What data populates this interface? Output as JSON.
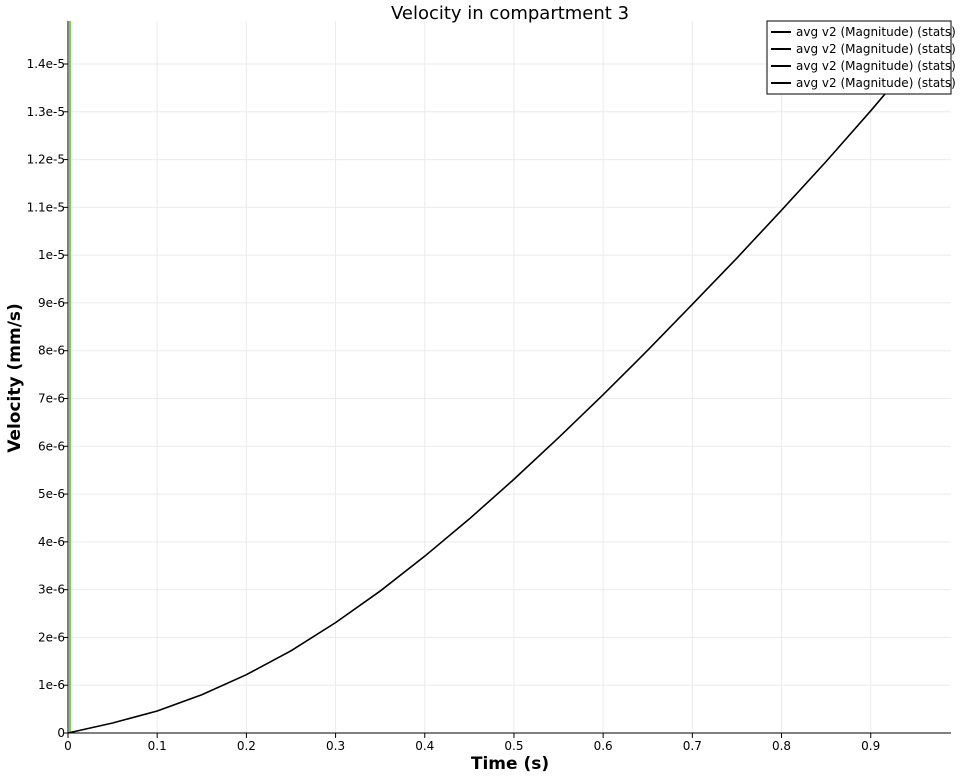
{
  "chart_data": {
    "type": "line",
    "title": "Velocity in compartment 3",
    "xlabel": "Time (s)",
    "ylabel": "Velocity (mm/s)",
    "xlim": [
      0,
      0.99
    ],
    "ylim": [
      0,
      1.49e-05
    ],
    "x_ticks": [
      0,
      0.1,
      0.2,
      0.3,
      0.4,
      0.5,
      0.6,
      0.7,
      0.8,
      0.9
    ],
    "x_tick_labels": [
      "0",
      "0.1",
      "0.2",
      "0.3",
      "0.4",
      "0.5",
      "0.6",
      "0.7",
      "0.8",
      "0.9"
    ],
    "y_ticks": [
      0,
      1e-06,
      2e-06,
      3e-06,
      4e-06,
      5e-06,
      6e-06,
      7e-06,
      8e-06,
      9e-06,
      1e-05,
      1.1e-05,
      1.2e-05,
      1.3e-05,
      1.4e-05
    ],
    "y_tick_labels": [
      "0",
      "1e-6",
      "2e-6",
      "3e-6",
      "4e-6",
      "5e-6",
      "6e-6",
      "7e-6",
      "8e-6",
      "9e-6",
      "1e-5",
      "1.1e-5",
      "1.2e-5",
      "1.3e-5",
      "1.4e-5"
    ],
    "grid": true,
    "legend_position": "top-right",
    "series": [
      {
        "name": "avg v2 (Magnitude) (stats)",
        "color": "#000000",
        "x": [
          0,
          0.05,
          0.1,
          0.15,
          0.2,
          0.25,
          0.3,
          0.35,
          0.4,
          0.45,
          0.5,
          0.55,
          0.6,
          0.65,
          0.7,
          0.75,
          0.8,
          0.85,
          0.9,
          0.94
        ],
        "y": [
          0,
          2.1e-07,
          4.6e-07,
          8e-07,
          1.22e-06,
          1.72e-06,
          2.31e-06,
          2.97e-06,
          3.7e-06,
          4.48e-06,
          5.31e-06,
          6.18e-06,
          7.08e-06,
          8.01e-06,
          8.97e-06,
          9.94e-06,
          1.094e-05,
          1.196e-05,
          1.302e-05,
          1.39e-05
        ]
      },
      {
        "name": "avg v2 (Magnitude) (stats)",
        "color": "#000000",
        "x": [],
        "y": []
      },
      {
        "name": "avg v2 (Magnitude) (stats)",
        "color": "#000000",
        "x": [],
        "y": []
      },
      {
        "name": "avg v2 (Magnitude) (stats)",
        "color": "#000000",
        "x": [],
        "y": []
      }
    ],
    "time_marker": {
      "x": 0,
      "color": "#7ccd5a"
    }
  }
}
